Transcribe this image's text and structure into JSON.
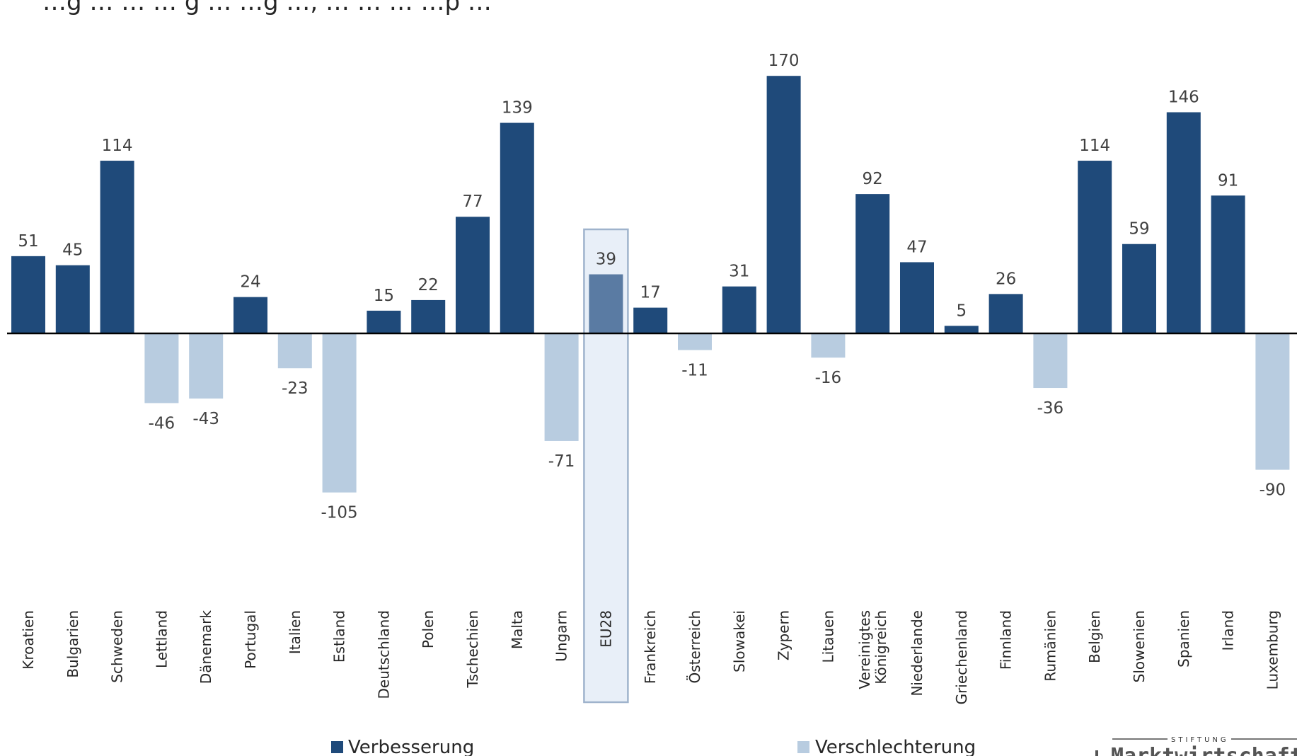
{
  "title": "…g … … … g … …g …, … … … …p …",
  "chart_data": {
    "type": "bar",
    "categories": [
      "Kroatien",
      "Bulgarien",
      "Schweden",
      "Lettland",
      "Dänemark",
      "Portugal",
      "Italien",
      "Estland",
      "Deutschland",
      "Polen",
      "Tschechien",
      "Malta",
      "Ungarn",
      "EU28",
      "Frankreich",
      "Österreich",
      "Slowakei",
      "Zypern",
      "Litauen",
      "Vereinigtes Königreich",
      "Niederlande",
      "Griechenland",
      "Finnland",
      "Rumänien",
      "Belgien",
      "Slowenien",
      "Spanien",
      "Irland",
      "Luxemburg"
    ],
    "values": [
      51,
      45,
      114,
      -46,
      -43,
      24,
      -23,
      -105,
      15,
      22,
      77,
      139,
      -71,
      39,
      17,
      -11,
      31,
      170,
      -16,
      92,
      47,
      5,
      26,
      -36,
      114,
      59,
      146,
      91,
      -90
    ],
    "highlight": "EU28",
    "legend": [
      {
        "name": "Verbesserung",
        "color": "#1f4a7a"
      },
      {
        "name": "Verschlechterung",
        "color": "#b8cce0"
      }
    ],
    "legend_position": "bottom",
    "grid": false,
    "xlabel": "",
    "ylabel": "",
    "colors": {
      "positive": "#1f4a7a",
      "negative": "#b8cce0",
      "highlight_bar": "#5a7ba3",
      "highlight_box_fill": "#e8eff8",
      "highlight_box_stroke": "#9fb3cc"
    }
  },
  "logo": {
    "top": "STIFTUNG",
    "main": "Marktwirtschaft"
  }
}
